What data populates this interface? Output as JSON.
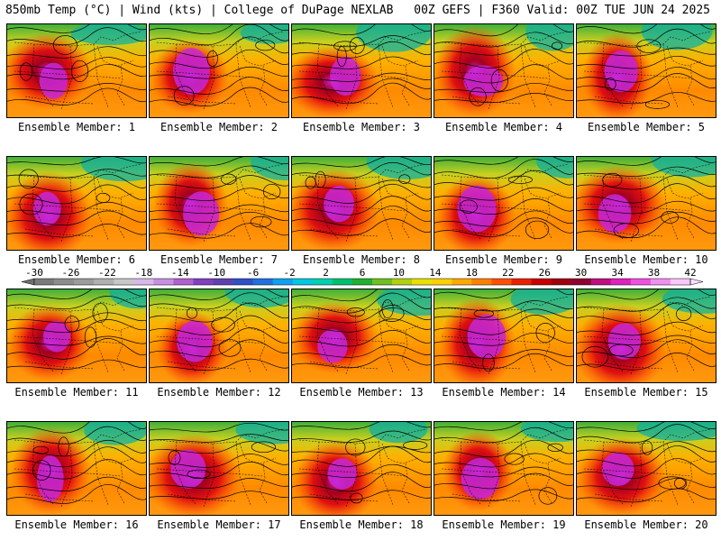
{
  "header": {
    "left": "850mb Temp (°C) | Wind (kts) | College of DuPage NEXLAB",
    "right": "00Z GEFS | F360 Valid: 00Z TUE JUN 24 2025"
  },
  "colorbar": {
    "tick_labels": [
      "-30",
      "-26",
      "-22",
      "-18",
      "-14",
      "-10",
      "-6",
      "-2",
      "2",
      "6",
      "10",
      "14",
      "18",
      "22",
      "26",
      "30",
      "34",
      "38",
      "42"
    ],
    "colors": [
      "#7a7a7a",
      "#8c8c8c",
      "#9c9c9c",
      "#b0b0b0",
      "#c8c8c8",
      "#d8b8e8",
      "#c890e0",
      "#b060d0",
      "#8040c0",
      "#6040b0",
      "#3050c8",
      "#2070e0",
      "#10a0f0",
      "#00c8e0",
      "#00d0b0",
      "#00c070",
      "#20b030",
      "#70c020",
      "#b0d010",
      "#e8e000",
      "#ffd000",
      "#ffa800",
      "#ff8000",
      "#ff5000",
      "#e82000",
      "#c80000",
      "#a00010",
      "#900030",
      "#c01080",
      "#e020c0",
      "#f050e0",
      "#f090f0",
      "#f8c8f8"
    ]
  },
  "panels": [
    {
      "label": "Ensemble Member: 1"
    },
    {
      "label": "Ensemble Member: 2"
    },
    {
      "label": "Ensemble Member: 3"
    },
    {
      "label": "Ensemble Member: 4"
    },
    {
      "label": "Ensemble Member: 5"
    },
    {
      "label": "Ensemble Member: 6"
    },
    {
      "label": "Ensemble Member: 7"
    },
    {
      "label": "Ensemble Member: 8"
    },
    {
      "label": "Ensemble Member: 9"
    },
    {
      "label": "Ensemble Member: 10"
    },
    {
      "label": "Ensemble Member: 11"
    },
    {
      "label": "Ensemble Member: 12"
    },
    {
      "label": "Ensemble Member: 13"
    },
    {
      "label": "Ensemble Member: 14"
    },
    {
      "label": "Ensemble Member: 15"
    },
    {
      "label": "Ensemble Member: 16"
    },
    {
      "label": "Ensemble Member: 17"
    },
    {
      "label": "Ensemble Member: 18"
    },
    {
      "label": "Ensemble Member: 19"
    },
    {
      "label": "Ensemble Member: 20"
    }
  ]
}
